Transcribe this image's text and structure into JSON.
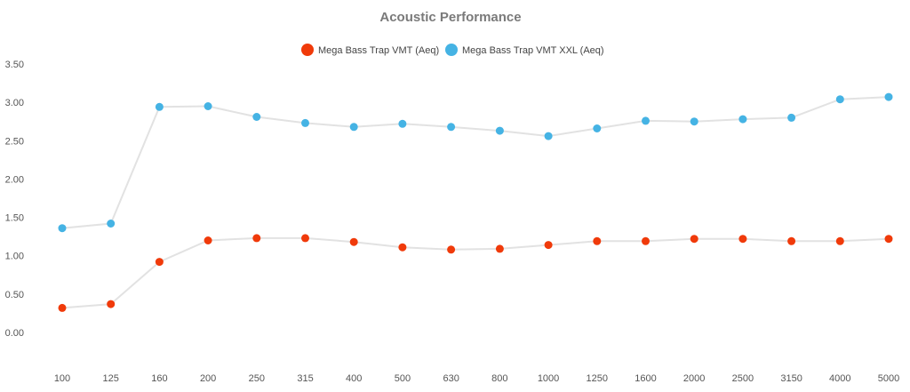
{
  "chart_data": {
    "type": "line",
    "title": "Acoustic Performance",
    "xlabel": "",
    "ylabel": "",
    "categories": [
      "100",
      "125",
      "160",
      "200",
      "250",
      "315",
      "400",
      "500",
      "630",
      "800",
      "1000",
      "1250",
      "1600",
      "2000",
      "2500",
      "3150",
      "4000",
      "5000"
    ],
    "ylim": [
      0,
      3.5
    ],
    "yticks": [
      "0.00",
      "0.50",
      "1.00",
      "1.50",
      "2.00",
      "2.50",
      "3.00",
      "3.50"
    ],
    "yticks_values": [
      0,
      0.5,
      1,
      1.5,
      2,
      2.5,
      3,
      3.5
    ],
    "legend_position": "top-center",
    "grid": false,
    "line_color": "#e2e2e2",
    "series": [
      {
        "name": "Mega Bass Trap VMT (Aeq)",
        "color": "#f03a0a",
        "values": [
          0.32,
          0.37,
          0.92,
          1.2,
          1.23,
          1.23,
          1.18,
          1.11,
          1.08,
          1.09,
          1.14,
          1.19,
          1.19,
          1.22,
          1.22,
          1.19,
          1.19,
          1.22
        ]
      },
      {
        "name": "Mega Bass Trap VMT XXL (Aeq)",
        "color": "#45b3e4",
        "values": [
          1.36,
          1.42,
          2.94,
          2.95,
          2.81,
          2.73,
          2.68,
          2.72,
          2.68,
          2.63,
          2.56,
          2.66,
          2.76,
          2.75,
          2.78,
          2.8,
          3.04,
          3.07
        ]
      }
    ]
  }
}
